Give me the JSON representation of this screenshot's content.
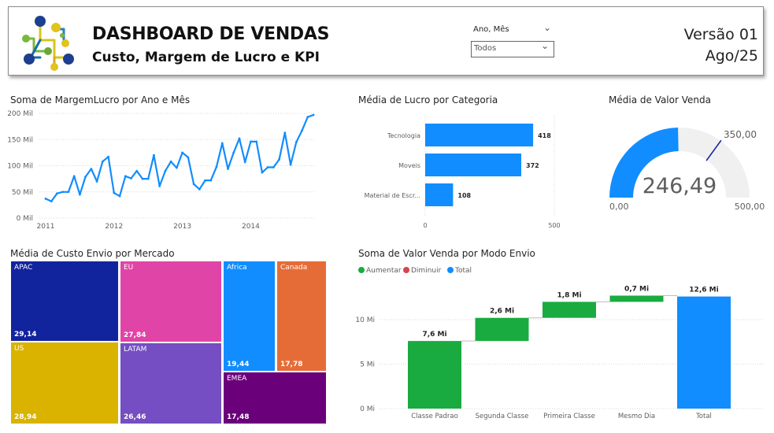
{
  "header": {
    "title": "DASHBOARD DE VENDAS",
    "subtitle": "Custo, Margem de Lucro e KPI",
    "version_line1": "Versão 01",
    "version_line2": "Ago/25",
    "slicer": {
      "label": "Ano, Mês",
      "value": "Todos"
    }
  },
  "charts": {
    "line": {
      "title": "Soma de MargemLucro por Ano e Mês",
      "y_ticks": [
        "200 Mil",
        "150 Mil",
        "100 Mil",
        "50 Mil",
        "0 Mil"
      ],
      "x_ticks": [
        "2011",
        "2012",
        "2013",
        "2014"
      ]
    },
    "bar": {
      "title": "Média de Lucro por Categoria",
      "categories": [
        "Tecnologia",
        "Moveis",
        "Material de Escr..."
      ],
      "labels": [
        "418",
        "372",
        "108"
      ],
      "x_ticks": [
        "0",
        "500"
      ]
    },
    "gauge": {
      "title": "Média de Valor Venda",
      "value_label": "246,49",
      "min_label": "0,00",
      "max_label": "500,00",
      "target_label": "350,00"
    },
    "treemap": {
      "title": "Média de Custo Envio por Mercado"
    },
    "waterfall": {
      "title": "Soma de Valor Venda por Modo Envio",
      "legend": [
        {
          "label": "Aumentar",
          "color": "#1aab40"
        },
        {
          "label": "Diminuir",
          "color": "#d64550"
        },
        {
          "label": "Total",
          "color": "#118dff"
        }
      ],
      "y_ticks": [
        "10 Mi",
        "5 Mi",
        "0 Mi"
      ],
      "categories": [
        "Classe Padrao",
        "Segunda Classe",
        "Primeira Classe",
        "Mesmo Dia",
        "Total"
      ],
      "labels": [
        "7,6 Mi",
        "2,6 Mi",
        "1,8 Mi",
        "0,7 Mi",
        "12,6 Mi"
      ]
    }
  },
  "chart_data": [
    {
      "type": "line",
      "title": "Soma de MargemLucro por Ano e Mês",
      "ylabel": "",
      "xlabel": "",
      "ylim": [
        0,
        200000
      ],
      "x_range": [
        "2011-01",
        "2014-12"
      ],
      "series": [
        {
          "name": "MargemLucro",
          "values": [
            37000,
            32000,
            47000,
            50000,
            50000,
            80000,
            45000,
            79000,
            94000,
            70000,
            108000,
            117000,
            48000,
            42000,
            80000,
            76000,
            90000,
            75000,
            75000,
            120000,
            61000,
            90000,
            108000,
            96000,
            125000,
            116000,
            65000,
            55000,
            72000,
            72000,
            98000,
            143000,
            94000,
            125000,
            152000,
            107000,
            146000,
            146000,
            87000,
            97000,
            97000,
            112000,
            163000,
            102000,
            145000,
            167000,
            193000,
            197000
          ]
        }
      ]
    },
    {
      "type": "bar",
      "title": "Média de Lucro por Categoria",
      "categories": [
        "Tecnologia",
        "Moveis",
        "Material de Escr..."
      ],
      "values": [
        418,
        372,
        108
      ],
      "xlim": [
        0,
        500
      ]
    },
    {
      "type": "gauge",
      "title": "Média de Valor Venda",
      "value": 246.49,
      "min": 0,
      "max": 500,
      "target": 350
    },
    {
      "type": "treemap",
      "title": "Média de Custo Envio por Mercado",
      "categories": [
        "APAC",
        "US",
        "EU",
        "LATAM",
        "Africa",
        "Canada",
        "EMEA"
      ],
      "values": [
        29.14,
        28.94,
        27.84,
        26.46,
        19.44,
        17.78,
        17.48
      ],
      "value_labels": [
        "29,14",
        "28,94",
        "27,84",
        "26,46",
        "19,44",
        "17,78",
        "17,48"
      ],
      "colors": [
        "#12239e",
        "#d9b300",
        "#e044a7",
        "#744ec2",
        "#118dff",
        "#e66c37",
        "#6b007b"
      ]
    },
    {
      "type": "waterfall",
      "title": "Soma de Valor Venda por Modo Envio",
      "categories": [
        "Classe Padrao",
        "Segunda Classe",
        "Primeira Classe",
        "Mesmo Dia",
        "Total"
      ],
      "values": [
        7.6,
        2.6,
        1.8,
        0.7,
        12.6
      ],
      "kinds": [
        "increase",
        "increase",
        "increase",
        "increase",
        "total"
      ],
      "ylim": [
        0,
        13
      ],
      "unit": "Mi"
    }
  ]
}
